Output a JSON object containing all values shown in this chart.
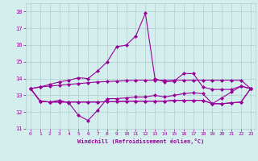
{
  "x": [
    0,
    1,
    2,
    3,
    4,
    5,
    6,
    7,
    8,
    9,
    10,
    11,
    12,
    13,
    14,
    15,
    16,
    17,
    18,
    19,
    20,
    21,
    22,
    23
  ],
  "lines": [
    [
      13.4,
      13.5,
      13.55,
      13.6,
      13.65,
      13.7,
      13.75,
      13.8,
      13.82,
      13.85,
      13.87,
      13.9,
      13.9,
      13.9,
      13.9,
      13.9,
      13.9,
      13.9,
      13.9,
      13.9,
      13.9,
      13.9,
      13.9,
      13.4
    ],
    [
      13.4,
      12.65,
      12.6,
      12.7,
      12.55,
      11.8,
      11.5,
      12.1,
      12.8,
      12.8,
      12.85,
      12.9,
      12.9,
      13.0,
      12.9,
      13.0,
      13.1,
      13.15,
      13.1,
      12.5,
      12.85,
      13.2,
      13.55,
      13.4
    ],
    [
      13.4,
      13.5,
      13.65,
      13.8,
      13.9,
      14.05,
      14.0,
      14.45,
      15.0,
      15.9,
      16.0,
      16.55,
      17.9,
      14.0,
      13.8,
      13.85,
      14.3,
      14.3,
      13.5,
      13.35,
      13.35,
      13.35,
      13.55,
      13.4
    ],
    [
      13.4,
      12.65,
      12.6,
      12.6,
      12.6,
      12.6,
      12.6,
      12.6,
      12.62,
      12.62,
      12.65,
      12.65,
      12.65,
      12.65,
      12.65,
      12.7,
      12.7,
      12.7,
      12.7,
      12.5,
      12.5,
      12.55,
      12.6,
      13.4
    ],
    [
      13.4,
      12.65,
      12.6,
      12.6,
      12.6,
      12.6,
      12.6,
      12.6,
      12.62,
      12.62,
      12.65,
      12.65,
      12.65,
      12.65,
      12.65,
      12.7,
      12.7,
      12.7,
      12.7,
      12.5,
      12.5,
      12.55,
      12.6,
      13.4
    ]
  ],
  "xlim": [
    -0.5,
    23.5
  ],
  "ylim": [
    11,
    18.5
  ],
  "yticks": [
    11,
    12,
    13,
    14,
    15,
    16,
    17,
    18
  ],
  "xticks": [
    0,
    1,
    2,
    3,
    4,
    5,
    6,
    7,
    8,
    9,
    10,
    11,
    12,
    13,
    14,
    15,
    16,
    17,
    18,
    19,
    20,
    21,
    22,
    23
  ],
  "xlabel": "Windchill (Refroidissement éolien,°C)",
  "line_color": "#990099",
  "bg_color": "#d4eeee",
  "grid_color": "#b0cccc",
  "tick_color": "#990099",
  "label_color": "#990099",
  "marker": "D",
  "marker_size": 2,
  "line_width": 0.8
}
